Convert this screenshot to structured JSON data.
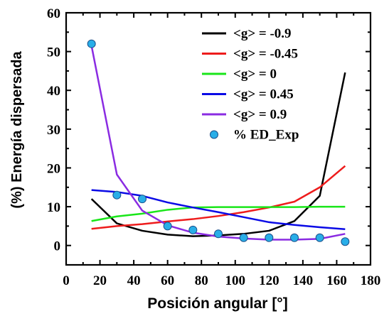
{
  "chart_data": {
    "type": "line",
    "xlabel": "Posición angular [°]",
    "ylabel": "(%) Energía dispersada",
    "xlim": [
      0,
      180
    ],
    "ylim": [
      -5,
      60
    ],
    "xticks": [
      0,
      20,
      40,
      60,
      80,
      100,
      120,
      140,
      160,
      180
    ],
    "yticks": [
      0,
      10,
      20,
      30,
      40,
      50,
      60
    ],
    "grid": false,
    "legend_position": "top-right",
    "series": [
      {
        "name": "<g> = -0.9",
        "color": "#000000",
        "style": "line",
        "x": [
          15,
          30,
          45,
          60,
          75,
          90,
          105,
          120,
          135,
          150,
          165
        ],
        "values": [
          12,
          5.7,
          3.8,
          2.8,
          2.4,
          2.6,
          3.0,
          3.8,
          6.3,
          12.8,
          44.6
        ]
      },
      {
        "name": "<g> = -0.45",
        "color": "#ee1c1c",
        "style": "line",
        "x": [
          15,
          30,
          45,
          60,
          75,
          90,
          105,
          120,
          135,
          150,
          165
        ],
        "values": [
          4.3,
          5.0,
          5.5,
          6.2,
          6.8,
          7.6,
          8.6,
          9.8,
          11.3,
          15.0,
          20.5
        ]
      },
      {
        "name": "<g> = 0",
        "color": "#19e619",
        "style": "line",
        "x": [
          15,
          30,
          45,
          60,
          75,
          90,
          105,
          120,
          135,
          150,
          165
        ],
        "values": [
          6.3,
          7.5,
          8.2,
          9.2,
          9.8,
          9.9,
          9.9,
          9.9,
          9.9,
          10.0,
          10.0
        ]
      },
      {
        "name": "<g> = 0.45",
        "color": "#0a0ae6",
        "style": "line",
        "x": [
          15,
          30,
          45,
          60,
          75,
          90,
          105,
          120,
          135,
          150,
          165
        ],
        "values": [
          14.3,
          13.8,
          12.8,
          11.1,
          9.8,
          8.6,
          7.3,
          6.0,
          5.3,
          4.7,
          4.2
        ]
      },
      {
        "name": "<g> = 0.9",
        "color": "#8a2be2",
        "style": "line",
        "x": [
          15,
          30,
          45,
          60,
          75,
          90,
          105,
          120,
          135,
          150,
          165
        ],
        "values": [
          51.5,
          18.3,
          9.0,
          5.2,
          3.3,
          2.3,
          1.8,
          1.5,
          1.5,
          1.7,
          3.0
        ]
      },
      {
        "name": "% ED_Exp",
        "color": "#29aee8",
        "style": "markers",
        "x": [
          15,
          30,
          45,
          60,
          75,
          90,
          105,
          120,
          135,
          150,
          165
        ],
        "values": [
          52,
          13,
          12,
          5,
          4,
          3,
          2,
          2,
          2,
          2,
          1
        ]
      }
    ]
  }
}
